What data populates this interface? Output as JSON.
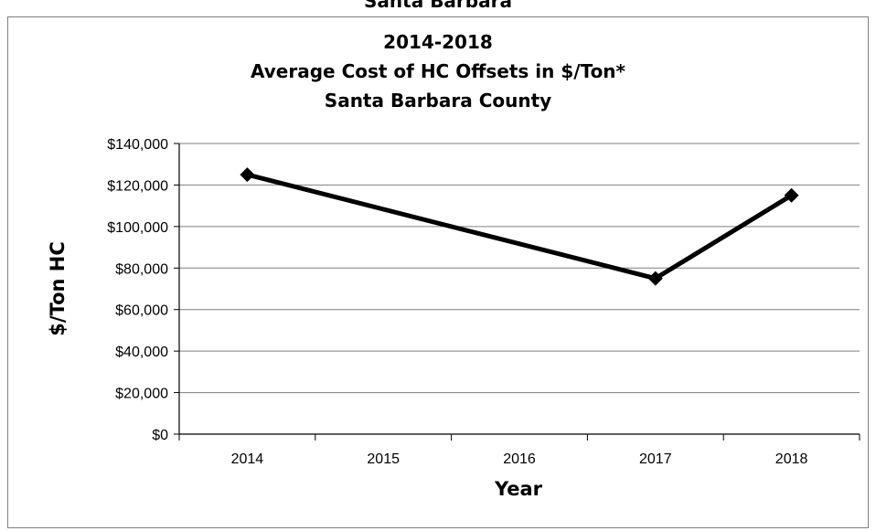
{
  "page": {
    "header": "Santa Barbara"
  },
  "chart_data": {
    "type": "line",
    "title_lines": [
      "2014-2018",
      "Average Cost of HC Offsets in $/Ton*",
      "Santa Barbara County"
    ],
    "xlabel": "Year",
    "ylabel": "$/Ton HC",
    "categories": [
      "2014",
      "2015",
      "2016",
      "2017",
      "2018"
    ],
    "series": [
      {
        "points": [
          {
            "x": "2014",
            "y": 125000
          },
          {
            "x": "2017",
            "y": 75000
          },
          {
            "x": "2018",
            "y": 115000
          }
        ]
      }
    ],
    "ylim": [
      0,
      140000
    ],
    "yticks": [
      0,
      20000,
      40000,
      60000,
      80000,
      100000,
      120000,
      140000
    ],
    "ytick_labels": [
      "$0",
      "$20,000",
      "$40,000",
      "$60,000",
      "$80,000",
      "$100,000",
      "$120,000",
      "$140,000"
    ],
    "grid": true,
    "line_color": "#000000",
    "grid_color": "#7f7f7f"
  }
}
